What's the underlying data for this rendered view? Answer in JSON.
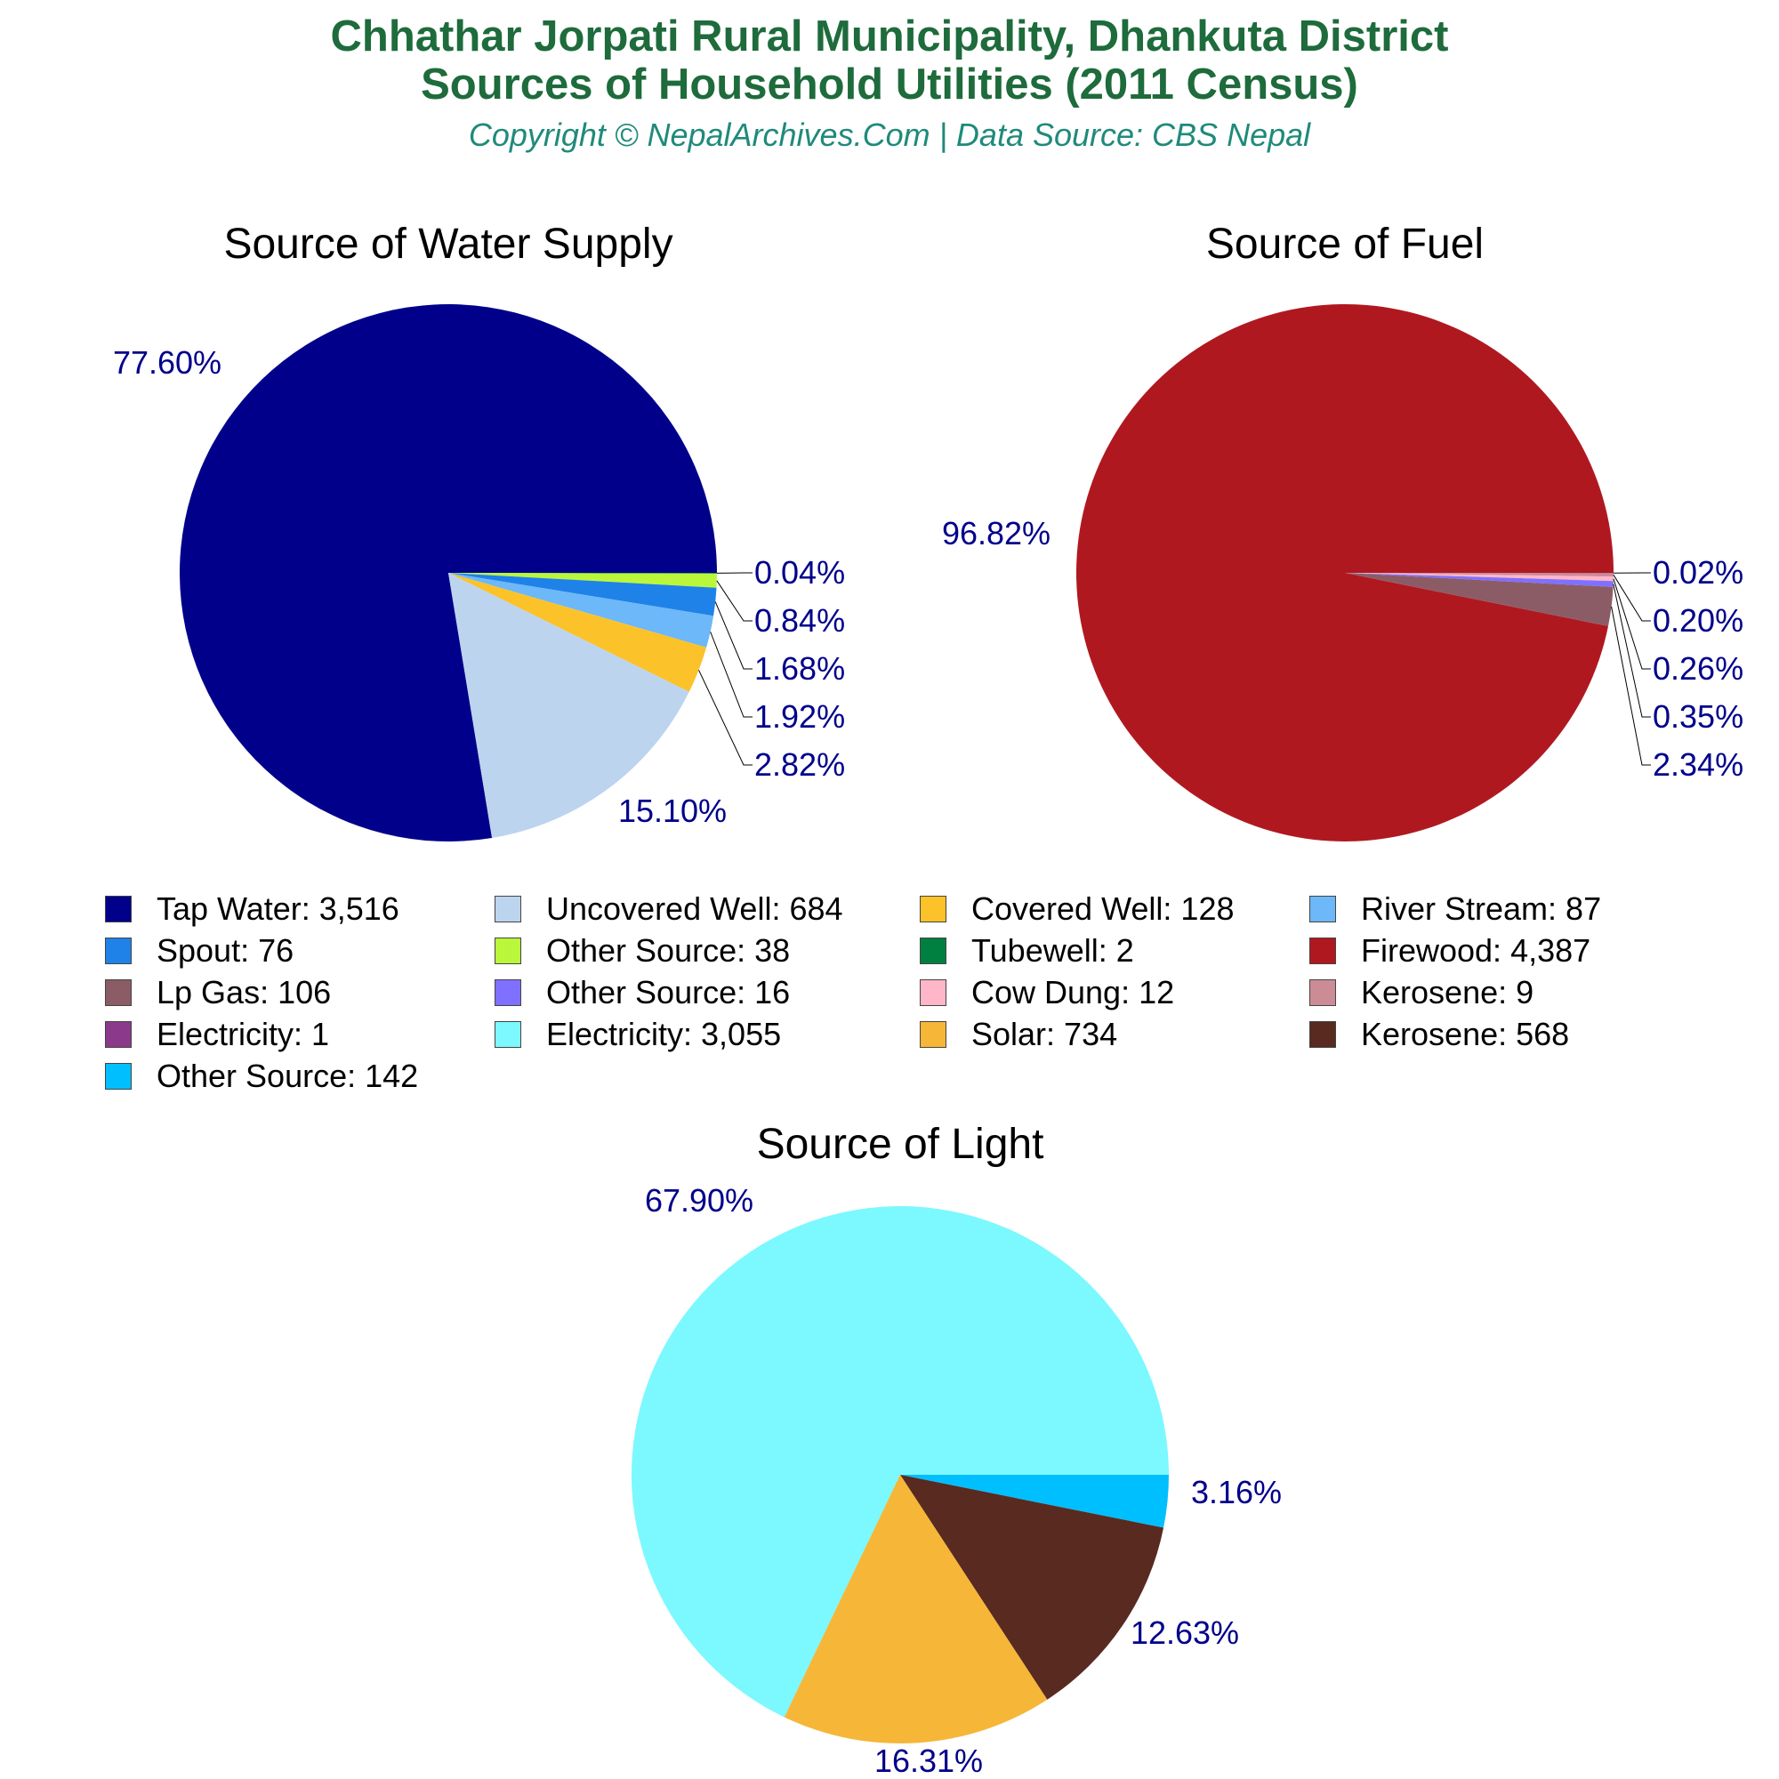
{
  "header": {
    "title_line1": "Chhathar Jorpati Rural Municipality, Dhankuta District",
    "title_line2": "Sources of Household Utilities (2011 Census)",
    "subtitle": "Copyright © NepalArchives.Com | Data Source: CBS Nepal"
  },
  "chart_data": [
    {
      "type": "pie",
      "title": "Source of Water Supply",
      "slices": [
        {
          "label": "Tap Water",
          "value": 3516,
          "pct": "77.60%",
          "color": "#00008b"
        },
        {
          "label": "Uncovered Well",
          "value": 684,
          "pct": "15.10%",
          "color": "#bcd4ee"
        },
        {
          "label": "Covered Well",
          "value": 128,
          "pct": "2.82%",
          "color": "#fcc22a"
        },
        {
          "label": "River Stream",
          "value": 87,
          "pct": "1.92%",
          "color": "#6cb8f8"
        },
        {
          "label": "Spout",
          "value": 76,
          "pct": "1.68%",
          "color": "#1f82e8"
        },
        {
          "label": "Other Source",
          "value": 38,
          "pct": "0.84%",
          "color": "#baf73a"
        },
        {
          "label": "Tubewell",
          "value": 2,
          "pct": "0.04%",
          "color": "#008040"
        }
      ]
    },
    {
      "type": "pie",
      "title": "Source of Fuel",
      "slices": [
        {
          "label": "Firewood",
          "value": 4387,
          "pct": "96.82%",
          "color": "#b01820"
        },
        {
          "label": "Lp Gas",
          "value": 106,
          "pct": "2.34%",
          "color": "#8b5c66"
        },
        {
          "label": "Other Source",
          "value": 16,
          "pct": "0.35%",
          "color": "#8070ff"
        },
        {
          "label": "Cow Dung",
          "value": 12,
          "pct": "0.26%",
          "color": "#ffb6c8"
        },
        {
          "label": "Kerosene",
          "value": 9,
          "pct": "0.20%",
          "color": "#cc8c96"
        },
        {
          "label": "Electricity",
          "value": 1,
          "pct": "0.02%",
          "color": "#8b3a8b"
        }
      ]
    },
    {
      "type": "pie",
      "title": "Source of Light",
      "slices": [
        {
          "label": "Electricity",
          "value": 3055,
          "pct": "67.90%",
          "color": "#7cf8ff"
        },
        {
          "label": "Solar",
          "value": 734,
          "pct": "16.31%",
          "color": "#f6b638"
        },
        {
          "label": "Kerosene",
          "value": 568,
          "pct": "12.63%",
          "color": "#582a20"
        },
        {
          "label": "Other Source",
          "value": 142,
          "pct": "3.16%",
          "color": "#00bfff"
        }
      ]
    }
  ],
  "legend": [
    {
      "text": "Tap Water: 3,516",
      "color": "#00008b"
    },
    {
      "text": "Uncovered Well: 684",
      "color": "#bcd4ee"
    },
    {
      "text": "Covered Well: 128",
      "color": "#fcc22a"
    },
    {
      "text": "River Stream: 87",
      "color": "#6cb8f8"
    },
    {
      "text": "Spout: 76",
      "color": "#1f82e8"
    },
    {
      "text": "Other Source: 38",
      "color": "#baf73a"
    },
    {
      "text": "Tubewell: 2",
      "color": "#008040"
    },
    {
      "text": "Firewood: 4,387",
      "color": "#b01820"
    },
    {
      "text": "Lp Gas: 106",
      "color": "#8b5c66"
    },
    {
      "text": "Other Source: 16",
      "color": "#8070ff"
    },
    {
      "text": "Cow Dung: 12",
      "color": "#ffb6c8"
    },
    {
      "text": "Kerosene: 9",
      "color": "#cc8c96"
    },
    {
      "text": "Electricity: 1",
      "color": "#8b3a8b"
    },
    {
      "text": "Electricity: 3,055",
      "color": "#7cf8ff"
    },
    {
      "text": "Solar: 734",
      "color": "#f6b638"
    },
    {
      "text": "Kerosene: 568",
      "color": "#582a20"
    },
    {
      "text": "Other Source: 142",
      "color": "#00bfff"
    }
  ]
}
